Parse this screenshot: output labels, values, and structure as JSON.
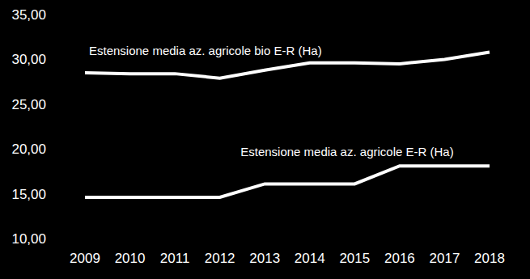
{
  "chart_data": {
    "type": "line",
    "categories": [
      "2009",
      "2010",
      "2011",
      "2012",
      "2013",
      "2014",
      "2015",
      "2016",
      "2017",
      "2018"
    ],
    "series": [
      {
        "name": "Estensione media az. agricole bio E-R (Ha)",
        "color": "#ffffff",
        "values": [
          28.5,
          28.4,
          28.4,
          27.9,
          28.8,
          29.6,
          29.6,
          29.5,
          30.0,
          30.8
        ]
      },
      {
        "name": "Estensione media az. agricole E-R (Ha)",
        "color": "#ffffff",
        "values": [
          14.6,
          14.6,
          14.6,
          14.6,
          16.1,
          16.1,
          16.1,
          18.1,
          18.1,
          18.1
        ]
      }
    ],
    "ylim": [
      10,
      35
    ],
    "yticks": [
      {
        "value": 10,
        "label": "10,00"
      },
      {
        "value": 15,
        "label": "15,00"
      },
      {
        "value": 20,
        "label": "20,00"
      },
      {
        "value": 25,
        "label": "25,00"
      },
      {
        "value": 30,
        "label": "30,00"
      },
      {
        "value": 35,
        "label": "35,00"
      }
    ],
    "grid": false
  }
}
